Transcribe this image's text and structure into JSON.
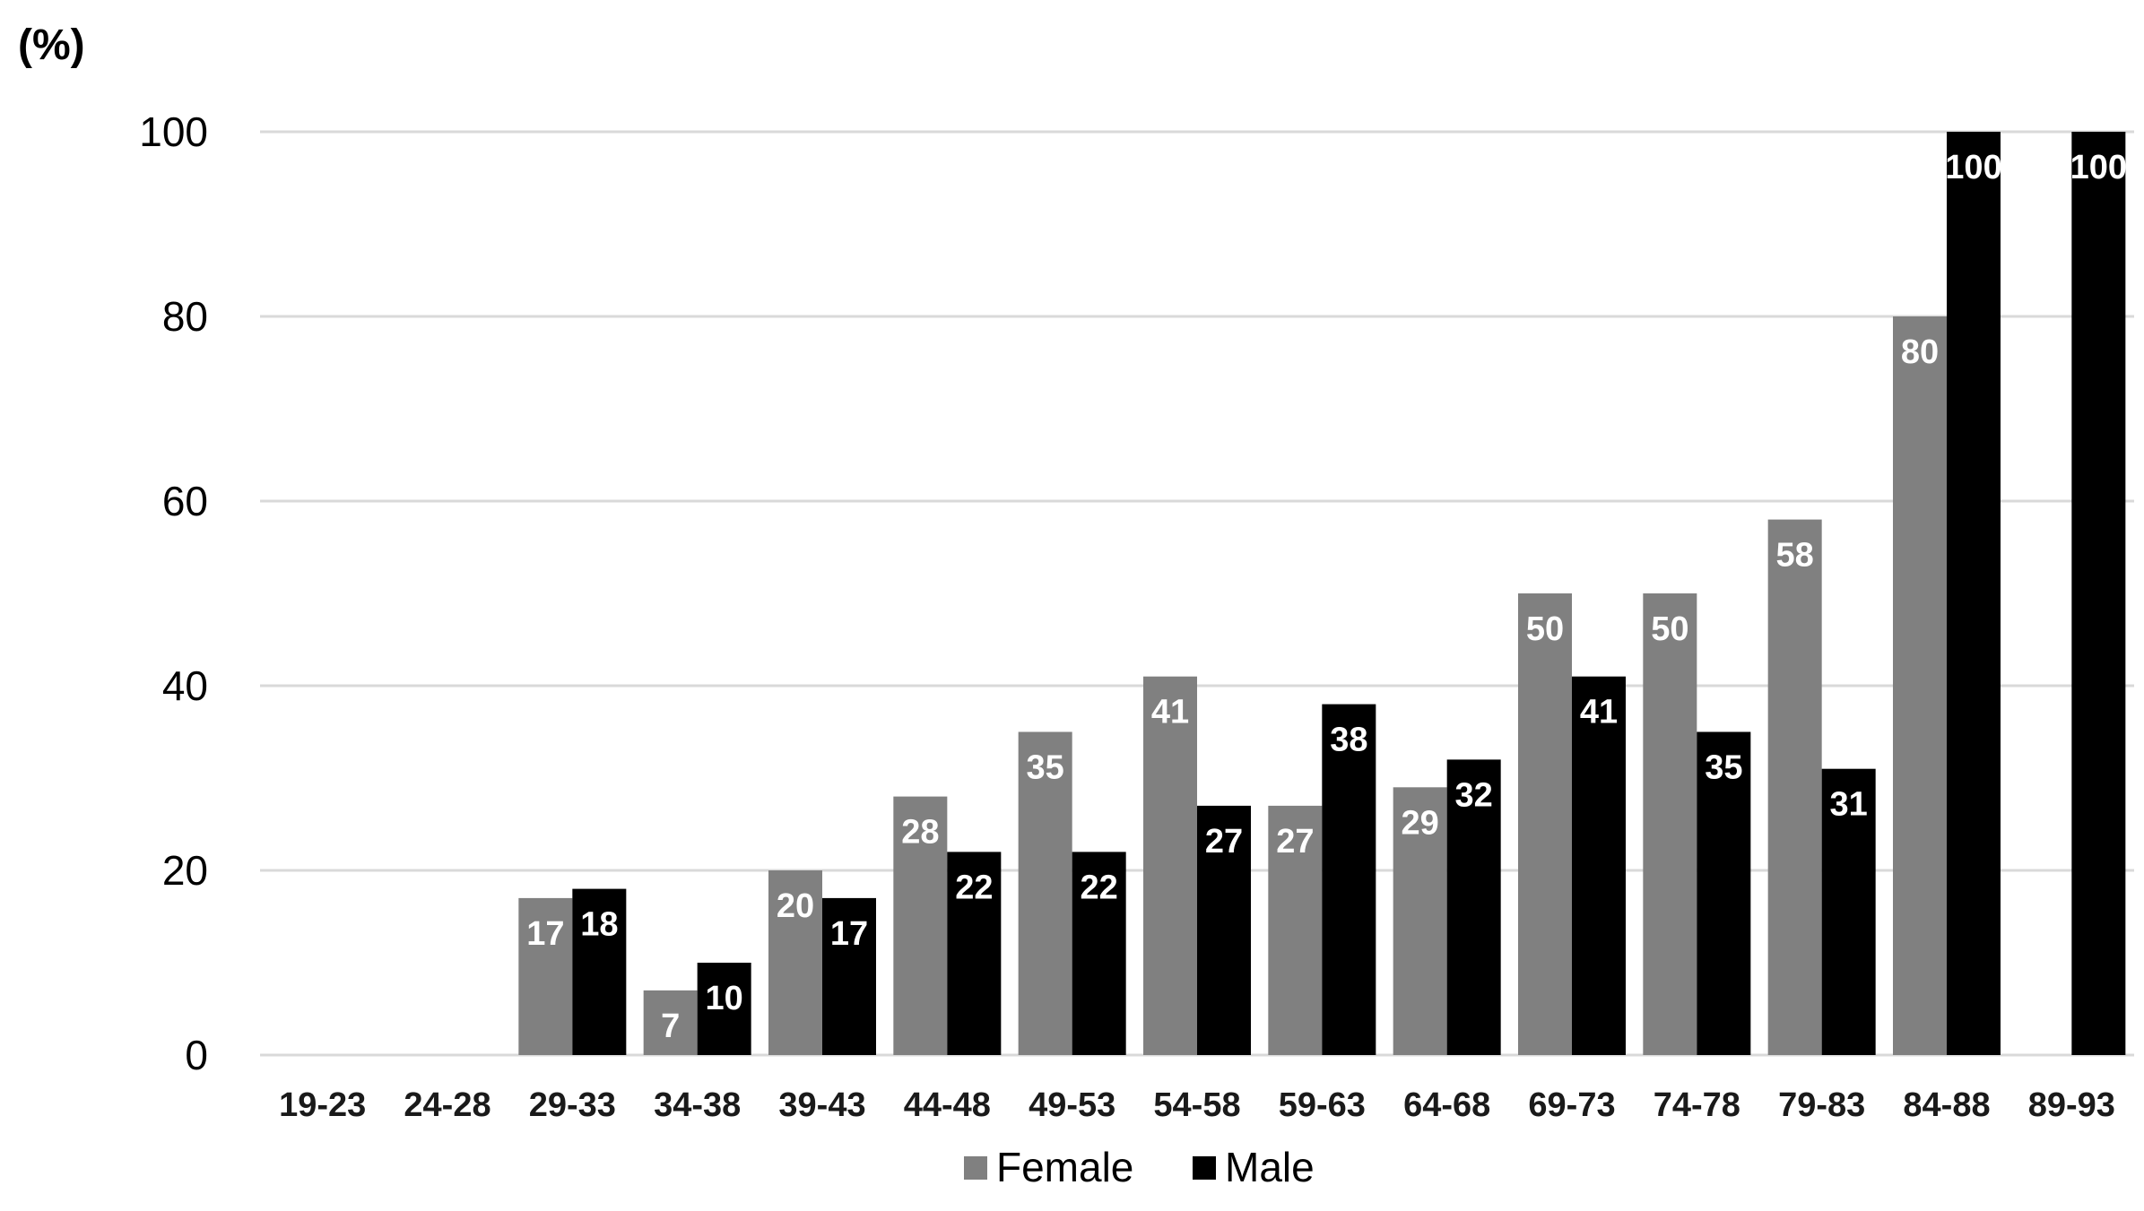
{
  "chart_data": {
    "type": "bar",
    "title": "",
    "unit_label": "(%)",
    "xlabel": "",
    "ylabel": "",
    "categories": [
      "19-23",
      "24-28",
      "29-33",
      "34-38",
      "39-43",
      "44-48",
      "49-53",
      "54-58",
      "59-63",
      "64-68",
      "69-73",
      "74-78",
      "79-83",
      "84-88",
      "89-93"
    ],
    "series": [
      {
        "name": "Female",
        "color": "#808080",
        "values": [
          null,
          null,
          17,
          7,
          20,
          28,
          35,
          41,
          27,
          29,
          50,
          50,
          58,
          80,
          null
        ],
        "labels": [
          "",
          "",
          "17",
          "7",
          "20",
          "28",
          "35",
          "41",
          "27",
          "29",
          "50",
          "50",
          "58",
          "80",
          ""
        ]
      },
      {
        "name": "Male",
        "color": "#000000",
        "values": [
          null,
          null,
          18,
          10,
          17,
          22,
          22,
          27,
          38,
          32,
          41,
          35,
          31,
          100,
          100
        ],
        "labels": [
          "",
          "",
          "18",
          "10",
          "17",
          "22",
          "22",
          "27",
          "38",
          "32",
          "41",
          "35",
          "31",
          "100",
          "100"
        ]
      }
    ],
    "ylim": [
      0,
      100
    ],
    "yticks": [
      0,
      20,
      40,
      60,
      80,
      100
    ],
    "ytick_labels": [
      "0",
      "20",
      "40",
      "60",
      "80",
      "100"
    ],
    "grid": true,
    "legend_position": "bottom-center",
    "label_color": "#ffffff",
    "grid_color": "#d9d9d9"
  }
}
